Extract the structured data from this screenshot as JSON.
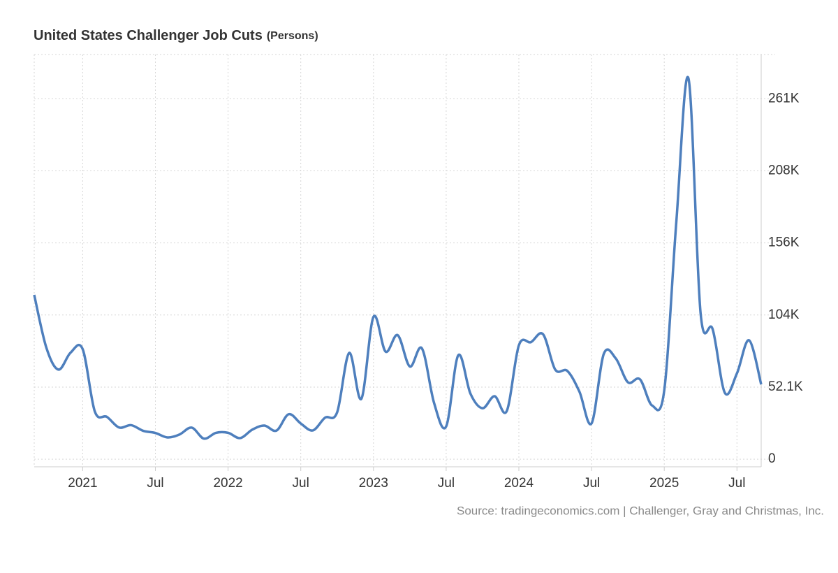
{
  "chart_data": {
    "type": "line",
    "title": "United States Challenger Job Cuts",
    "unit": "(Persons)",
    "source": "Source: tradingeconomics.com | Challenger, Gray and Christmas, Inc.",
    "x": [
      "2020-09",
      "2020-10",
      "2020-11",
      "2020-12",
      "2021-01",
      "2021-02",
      "2021-03",
      "2021-04",
      "2021-05",
      "2021-06",
      "2021-07",
      "2021-08",
      "2021-09",
      "2021-10",
      "2021-11",
      "2021-12",
      "2022-01",
      "2022-02",
      "2022-03",
      "2022-04",
      "2022-05",
      "2022-06",
      "2022-07",
      "2022-08",
      "2022-09",
      "2022-10",
      "2022-11",
      "2022-12",
      "2023-01",
      "2023-02",
      "2023-03",
      "2023-04",
      "2023-05",
      "2023-06",
      "2023-07",
      "2023-08",
      "2023-09",
      "2023-10",
      "2023-11",
      "2023-12",
      "2024-01",
      "2024-02",
      "2024-03",
      "2024-04",
      "2024-05",
      "2024-06",
      "2024-07",
      "2024-08",
      "2024-09",
      "2024-10",
      "2024-11",
      "2024-12",
      "2025-01",
      "2025-02",
      "2025-03",
      "2025-04",
      "2025-05",
      "2025-06",
      "2025-07",
      "2025-08",
      "2025-09"
    ],
    "series": [
      {
        "name": "Job Cuts",
        "color": "#4e7fbd",
        "values": [
          118804,
          80666,
          64797,
          77030,
          79552,
          34531,
          30603,
          22913,
          24586,
          20476,
          18942,
          15723,
          17895,
          22822,
          14875,
          19052,
          19064,
          15245,
          21387,
          24286,
          20712,
          32517,
          25810,
          20781,
          29989,
          33843,
          76835,
          43651,
          102943,
          77770,
          89703,
          66995,
          80089,
          40709,
          23697,
          75151,
          47457,
          36836,
          45510,
          34817,
          82307,
          84638,
          90309,
          64789,
          63816,
          48786,
          25885,
          75891,
          72821,
          55597,
          57727,
          38792,
          49795,
          172017,
          275240,
          105441,
          93816,
          47999,
          62075,
          85979,
          54064
        ]
      }
    ],
    "xlim": [
      "2020-09",
      "2025-09"
    ],
    "xticks": [
      {
        "value": "2021-01",
        "label": "2021"
      },
      {
        "value": "2021-07",
        "label": "Jul"
      },
      {
        "value": "2022-01",
        "label": "2022"
      },
      {
        "value": "2022-07",
        "label": "Jul"
      },
      {
        "value": "2023-01",
        "label": "2023"
      },
      {
        "value": "2023-07",
        "label": "Jul"
      },
      {
        "value": "2024-01",
        "label": "2024"
      },
      {
        "value": "2024-07",
        "label": "Jul"
      },
      {
        "value": "2025-01",
        "label": "2025"
      },
      {
        "value": "2025-07",
        "label": "Jul"
      }
    ],
    "ylim": [
      -5500,
      292600
    ],
    "yticks": [
      0,
      {
        "value": 52125,
        "label": "52.1K"
      },
      {
        "value": 104250,
        "label": "104K"
      },
      {
        "value": 156375,
        "label": "156K"
      },
      {
        "value": 208500,
        "label": "208K"
      },
      {
        "value": 260625,
        "label": "261K"
      }
    ],
    "grid": true
  }
}
